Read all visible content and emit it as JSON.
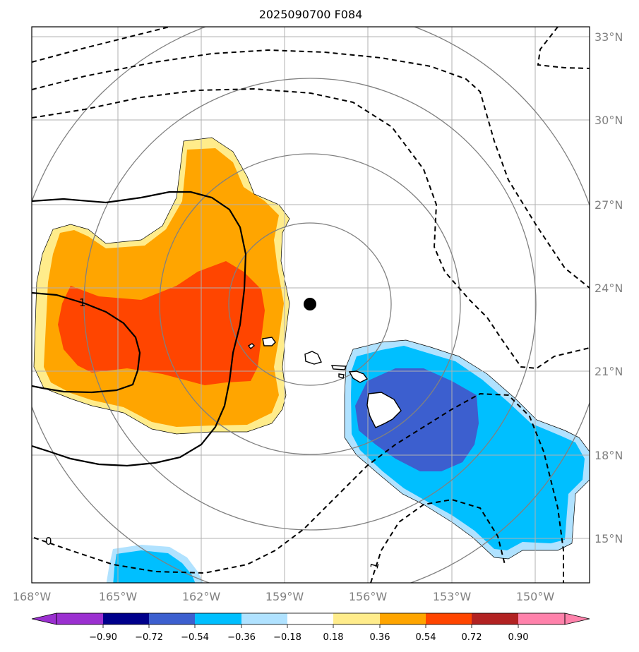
{
  "title": "2025090700 F084",
  "map": {
    "lon_range": [
      -168,
      -148
    ],
    "lat_range": [
      13.5,
      33.5
    ],
    "lon_ticks": [
      "168°W",
      "165°W",
      "162°W",
      "159°W",
      "156°W",
      "153°W",
      "150°W"
    ],
    "lat_ticks": [
      "33°N",
      "30°N",
      "27°N",
      "24°N",
      "21°N",
      "18°N",
      "15°N"
    ],
    "center_marker": {
      "lon": -158.0,
      "lat": 23.4
    },
    "contour_labels": [
      "1",
      "0",
      "1"
    ],
    "range_rings": "concentric circles around center marker",
    "grid": true
  },
  "colorbar": {
    "ticks": [
      "−0.90",
      "−0.72",
      "−0.54",
      "−0.36",
      "−0.18",
      "0.18",
      "0.36",
      "0.54",
      "0.72",
      "0.90"
    ],
    "colors": [
      "#9b30d0",
      "#00008b",
      "#3c5fcf",
      "#00bfff",
      "#b0e2ff",
      "#ffffff",
      "#ffec8b",
      "#ffa500",
      "#ff4500",
      "#b22222",
      "#ff82ab"
    ]
  },
  "colors": {
    "pos_light": "#ffec8b",
    "pos_mid": "#ffa500",
    "pos_high": "#ff4500",
    "neg_light": "#b0e2ff",
    "neg_mid": "#00bfff",
    "neg_high": "#3c5fcf",
    "grid": "#b0b0b0",
    "ring": "#808080"
  }
}
